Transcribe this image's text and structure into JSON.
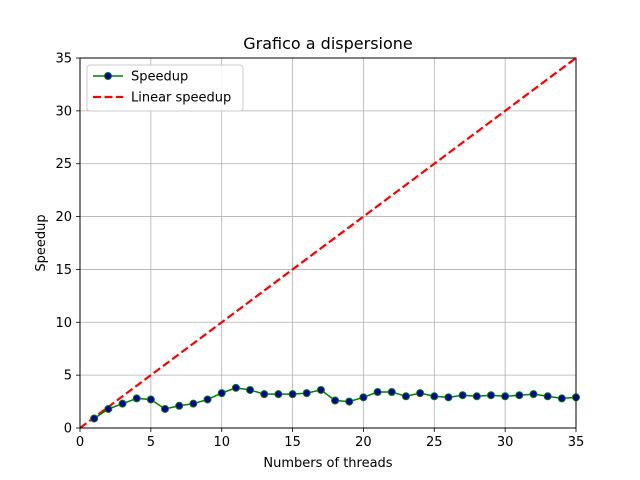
{
  "chart_data": {
    "type": "line",
    "title": "Grafico a dispersione",
    "xlabel": "Numbers of threads",
    "ylabel": "Speedup",
    "xlim": [
      0,
      35
    ],
    "ylim": [
      0,
      35
    ],
    "xticks": [
      0,
      5,
      10,
      15,
      20,
      25,
      30,
      35
    ],
    "yticks": [
      0,
      5,
      10,
      15,
      20,
      25,
      30,
      35
    ],
    "grid": true,
    "legend_position": "top-left",
    "series": [
      {
        "name": "Speedup",
        "line_color": "#008000",
        "marker_color": "#0000a0",
        "marker": "circle",
        "x": [
          1,
          2,
          3,
          4,
          5,
          6,
          7,
          8,
          9,
          10,
          11,
          12,
          13,
          14,
          15,
          16,
          17,
          18,
          19,
          20,
          21,
          22,
          23,
          24,
          25,
          26,
          27,
          28,
          29,
          30,
          31,
          32,
          33,
          34,
          35
        ],
        "y": [
          0.9,
          1.8,
          2.3,
          2.8,
          2.7,
          1.8,
          2.1,
          2.3,
          2.7,
          3.3,
          3.8,
          3.6,
          3.2,
          3.2,
          3.2,
          3.3,
          3.6,
          2.6,
          2.5,
          2.9,
          3.4,
          3.4,
          3.0,
          3.3,
          3.0,
          2.9,
          3.1,
          3.0,
          3.1,
          3.0,
          3.1,
          3.2,
          3.0,
          2.8,
          2.9
        ]
      },
      {
        "name": "Linear speedup",
        "line_color": "#ff0000",
        "line_style": "dashed",
        "x": [
          0,
          35
        ],
        "y": [
          0,
          35
        ]
      }
    ]
  }
}
